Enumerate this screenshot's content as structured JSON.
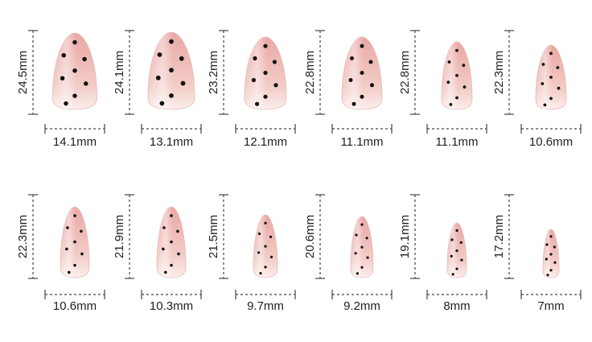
{
  "nails": [
    {
      "height": "24.5mm",
      "width": "14.1mm"
    },
    {
      "height": "24.1mm",
      "width": "13.1mm"
    },
    {
      "height": "23.2mm",
      "width": "12.1mm"
    },
    {
      "height": "22.8mm",
      "width": "11.1mm"
    },
    {
      "height": "22.8mm",
      "width": "11.1mm"
    },
    {
      "height": "22.3mm",
      "width": "10.6mm"
    },
    {
      "height": "22.3mm",
      "width": "10.6mm"
    },
    {
      "height": "21.9mm",
      "width": "10.3mm"
    },
    {
      "height": "21.5mm",
      "width": "9.7mm"
    },
    {
      "height": "20.6mm",
      "width": "9.2mm"
    },
    {
      "height": "19.1mm",
      "width": "8mm"
    },
    {
      "height": "17.2mm",
      "width": "7mm"
    }
  ]
}
